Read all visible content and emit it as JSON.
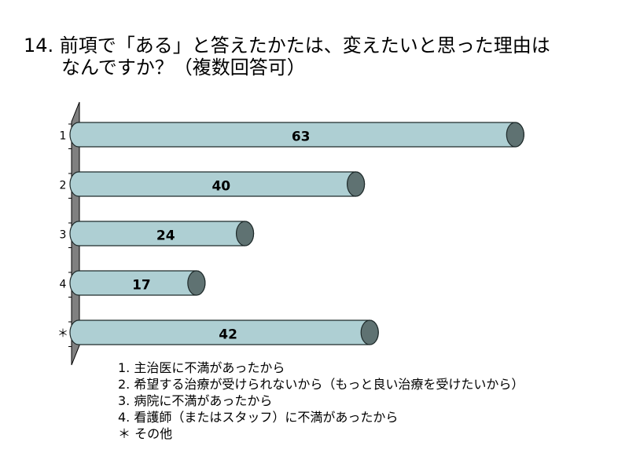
{
  "title": {
    "line1": "14.  前項で「ある」と答えたかたは、変えたいと思った理由は",
    "line2": "なんですか？（複数回答可）"
  },
  "chart_data": {
    "type": "bar",
    "orientation": "horizontal",
    "style": "3d-cylinder",
    "categories": [
      "1",
      "2",
      "3",
      "4",
      "＊"
    ],
    "values": [
      63,
      40,
      24,
      17,
      42
    ],
    "xlim": [
      0,
      70
    ],
    "grid": false,
    "bar_color": "#aecfd3",
    "end_cap_color": "#5f7272",
    "wall_color": "#808080"
  },
  "legend": [
    "1. 主治医に不満があったから",
    "2. 希望する治療が受けられないから（もっと良い治療を受けたいから）",
    "3. 病院に不満があったから",
    "4. 看護師（またはスタッフ）に不満があったから",
    "＊  その他"
  ]
}
